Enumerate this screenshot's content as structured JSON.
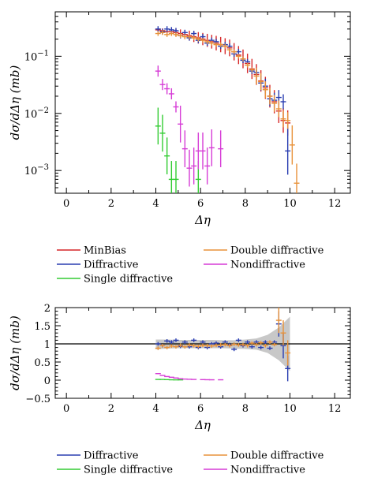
{
  "chart_data": [
    {
      "type": "scatter",
      "xlabel": "Δη",
      "ylabel": "dσ/dΔη (mb)",
      "xlim": [
        -0.5,
        12.7
      ],
      "ylim": [
        0.0004,
        0.6
      ],
      "ylog": true,
      "xticks": [
        "0",
        "2",
        "4",
        "6",
        "8",
        "10",
        "12"
      ],
      "yticks": [
        {
          "value": 0.1,
          "base": "10",
          "exp": "−1"
        },
        {
          "value": 0.01,
          "base": "10",
          "exp": "−2"
        },
        {
          "value": 0.001,
          "base": "10",
          "exp": "−3"
        }
      ],
      "legend": {
        "position": "below",
        "entries": [
          {
            "label": "MinBias",
            "color": "#d62728"
          },
          {
            "label": "Double diffractive",
            "color": "#e8923a"
          },
          {
            "label": "Diffractive",
            "color": "#2a3eb1"
          },
          {
            "label": "Nondiffractive",
            "color": "#d63cd6"
          },
          {
            "label": "Single diffractive",
            "color": "#33cc33"
          }
        ]
      },
      "series": [
        {
          "name": "MinBias",
          "color": "#d62728",
          "x": [
            4.1,
            4.3,
            4.5,
            4.7,
            4.9,
            5.1,
            5.3,
            5.5,
            5.7,
            5.9,
            6.1,
            6.3,
            6.5,
            6.7,
            6.9,
            7.1,
            7.3,
            7.5,
            7.7,
            7.9,
            8.1,
            8.3,
            8.5,
            8.7,
            8.9,
            9.1,
            9.3,
            9.5,
            9.7,
            9.9
          ],
          "y": [
            0.29,
            0.28,
            0.27,
            0.27,
            0.26,
            0.25,
            0.24,
            0.23,
            0.22,
            0.21,
            0.2,
            0.19,
            0.18,
            0.17,
            0.16,
            0.15,
            0.14,
            0.12,
            0.105,
            0.09,
            0.075,
            0.06,
            0.048,
            0.037,
            0.028,
            0.02,
            0.016,
            0.011,
            0.0075,
            0.0068
          ]
        },
        {
          "name": "Diffractive",
          "color": "#2a3eb1",
          "x": [
            4.1,
            4.3,
            4.5,
            4.7,
            4.9,
            5.1,
            5.3,
            5.5,
            5.7,
            5.9,
            6.1,
            6.3,
            6.5,
            6.7,
            6.9,
            7.1,
            7.3,
            7.5,
            7.7,
            7.9,
            8.1,
            8.3,
            8.5,
            8.7,
            8.9,
            9.1,
            9.3,
            9.5,
            9.7,
            9.9
          ],
          "y": [
            0.3,
            0.27,
            0.3,
            0.29,
            0.28,
            0.23,
            0.26,
            0.21,
            0.25,
            0.19,
            0.22,
            0.17,
            0.19,
            0.18,
            0.15,
            0.16,
            0.15,
            0.11,
            0.12,
            0.085,
            0.08,
            0.055,
            0.052,
            0.034,
            0.03,
            0.018,
            0.017,
            0.019,
            0.016,
            0.0022
          ]
        },
        {
          "name": "Double diffractive",
          "color": "#e8923a",
          "x": [
            4.1,
            4.3,
            4.5,
            4.7,
            4.9,
            5.1,
            5.3,
            5.5,
            5.7,
            5.9,
            6.1,
            6.3,
            6.5,
            6.7,
            6.9,
            7.1,
            7.3,
            7.5,
            7.7,
            7.9,
            8.1,
            8.3,
            8.5,
            8.7,
            8.9,
            9.1,
            9.3,
            9.5,
            9.7,
            9.9,
            10.1,
            10.3
          ],
          "y": [
            0.25,
            0.26,
            0.24,
            0.25,
            0.24,
            0.23,
            0.22,
            0.22,
            0.21,
            0.2,
            0.19,
            0.18,
            0.17,
            0.16,
            0.16,
            0.15,
            0.13,
            0.12,
            0.1,
            0.09,
            0.07,
            0.058,
            0.045,
            0.036,
            0.026,
            0.02,
            0.015,
            0.012,
            0.008,
            0.0075,
            0.0028,
            0.0006
          ]
        },
        {
          "name": "Single diffractive",
          "color": "#33cc33",
          "x": [
            4.1,
            4.3,
            4.5,
            4.7,
            4.9,
            5.9
          ],
          "y": [
            0.006,
            0.0045,
            0.0018,
            0.0007,
            0.0007,
            0.0007
          ]
        },
        {
          "name": "Nondiffractive",
          "color": "#d63cd6",
          "x": [
            4.1,
            4.3,
            4.5,
            4.7,
            4.9,
            5.1,
            5.3,
            5.5,
            5.7,
            5.9,
            6.1,
            6.3,
            6.5,
            6.9
          ],
          "y": [
            0.055,
            0.032,
            0.027,
            0.022,
            0.013,
            0.0065,
            0.0024,
            0.0011,
            0.0012,
            0.0022,
            0.0022,
            0.0012,
            0.0025,
            0.0024
          ]
        }
      ]
    },
    {
      "type": "scatter",
      "xlabel": "Δη",
      "ylabel": "dσ/dΔη (mb)",
      "xlim": [
        -0.5,
        12.7
      ],
      "ylim": [
        -0.5,
        2
      ],
      "xticks": [
        "0",
        "2",
        "4",
        "6",
        "8",
        "10",
        "12"
      ],
      "yticks": [
        "−0.5",
        "0",
        "0.5",
        "1",
        "1.5",
        "2"
      ],
      "reference_line": 1,
      "band": {
        "color": "#c8c8c8",
        "x": [
          4.0,
          4.5,
          5.0,
          5.5,
          6.0,
          6.5,
          7.0,
          7.5,
          8.0,
          8.5,
          9.0,
          9.5,
          10.0
        ],
        "low": [
          0.85,
          0.87,
          0.88,
          0.88,
          0.88,
          0.88,
          0.88,
          0.87,
          0.86,
          0.84,
          0.75,
          0.55,
          0.25
        ],
        "high": [
          1.12,
          1.12,
          1.11,
          1.11,
          1.11,
          1.11,
          1.1,
          1.1,
          1.12,
          1.15,
          1.25,
          1.45,
          1.75
        ]
      },
      "legend": {
        "position": "below",
        "entries": [
          {
            "label": "Diffractive",
            "color": "#2a3eb1"
          },
          {
            "label": "Double diffractive",
            "color": "#e8923a"
          },
          {
            "label": "Single diffractive",
            "color": "#33cc33"
          },
          {
            "label": "Nondiffractive",
            "color": "#d63cd6"
          }
        ]
      },
      "series": [
        {
          "name": "Diffractive",
          "color": "#2a3eb1",
          "x": [
            4.1,
            4.3,
            4.5,
            4.7,
            4.9,
            5.1,
            5.3,
            5.5,
            5.7,
            5.9,
            6.1,
            6.3,
            6.5,
            6.7,
            6.9,
            7.1,
            7.3,
            7.5,
            7.7,
            7.9,
            8.1,
            8.3,
            8.5,
            8.7,
            8.9,
            9.1,
            9.3,
            9.5,
            9.7,
            9.9
          ],
          "y": [
            1.0,
            0.95,
            1.08,
            1.05,
            1.1,
            0.93,
            1.05,
            0.92,
            1.1,
            0.9,
            1.05,
            0.9,
            1.0,
            1.02,
            0.92,
            1.05,
            0.98,
            0.85,
            1.1,
            0.95,
            1.05,
            0.92,
            1.05,
            0.9,
            1.05,
            0.88,
            1.05,
            1.55,
            0.95,
            0.32
          ]
        },
        {
          "name": "Double diffractive",
          "color": "#e8923a",
          "x": [
            4.1,
            4.3,
            4.5,
            4.7,
            4.9,
            5.1,
            5.3,
            5.5,
            5.7,
            5.9,
            6.1,
            6.3,
            6.5,
            6.7,
            6.9,
            7.1,
            7.3,
            7.5,
            7.7,
            7.9,
            8.1,
            8.3,
            8.5,
            8.7,
            8.9,
            9.1,
            9.3,
            9.5,
            9.7,
            9.9
          ],
          "y": [
            0.88,
            0.95,
            0.9,
            0.94,
            0.92,
            0.96,
            0.92,
            0.97,
            0.95,
            0.93,
            0.96,
            0.95,
            0.94,
            0.96,
            0.97,
            0.98,
            0.95,
            0.99,
            0.97,
            0.98,
            0.95,
            1.02,
            0.98,
            1.03,
            0.95,
            1.05,
            0.98,
            1.65,
            1.3,
            0.75
          ]
        },
        {
          "name": "Single diffractive",
          "color": "#33cc33",
          "x": [
            4.1,
            4.3,
            4.5,
            4.7,
            4.9,
            5.1
          ],
          "y": [
            0.02,
            0.02,
            0.015,
            0.01,
            0.008,
            0.008
          ]
        },
        {
          "name": "Nondiffractive",
          "color": "#d63cd6",
          "x": [
            4.1,
            4.3,
            4.5,
            4.7,
            4.9,
            5.1,
            5.3,
            5.5,
            5.7,
            6.1,
            6.3,
            6.5,
            6.9
          ],
          "y": [
            0.18,
            0.13,
            0.1,
            0.08,
            0.06,
            0.04,
            0.03,
            0.025,
            0.02,
            0.015,
            0.012,
            0.01,
            0.01
          ]
        }
      ]
    }
  ]
}
